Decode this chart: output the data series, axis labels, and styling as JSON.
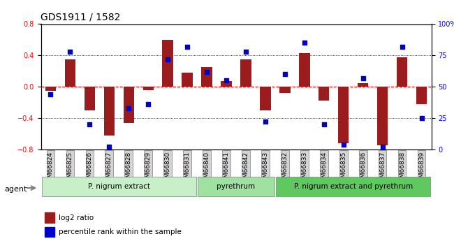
{
  "title": "GDS1911 / 1582",
  "samples": [
    "GSM66824",
    "GSM66825",
    "GSM66826",
    "GSM66827",
    "GSM66828",
    "GSM66829",
    "GSM66830",
    "GSM66831",
    "GSM66840",
    "GSM66841",
    "GSM66842",
    "GSM66843",
    "GSM66832",
    "GSM66833",
    "GSM66834",
    "GSM66835",
    "GSM66836",
    "GSM66837",
    "GSM66838",
    "GSM66839"
  ],
  "log2_ratio": [
    -0.05,
    0.35,
    -0.3,
    -0.62,
    -0.46,
    -0.04,
    0.6,
    0.18,
    0.25,
    0.07,
    0.35,
    -0.3,
    -0.08,
    0.43,
    -0.18,
    -0.72,
    0.05,
    -0.75,
    0.38,
    -0.22
  ],
  "pct_rank": [
    44,
    78,
    20,
    2,
    33,
    36,
    72,
    82,
    62,
    55,
    78,
    22,
    60,
    85,
    20,
    4,
    57,
    2,
    82,
    25
  ],
  "groups": [
    {
      "label": "P. nigrum extract",
      "start": 0,
      "end": 8,
      "color": "#c8f0c8"
    },
    {
      "label": "pyrethrum",
      "start": 8,
      "end": 12,
      "color": "#a0e0a0"
    },
    {
      "label": "P. nigrum extract and pyrethrum",
      "start": 12,
      "end": 20,
      "color": "#60c860"
    }
  ],
  "bar_color": "#9b1c1c",
  "dot_color": "#0000cc",
  "ylim_left": [
    -0.8,
    0.8
  ],
  "ylim_right": [
    0,
    100
  ],
  "yticks_left": [
    -0.8,
    -0.4,
    0.0,
    0.4,
    0.8
  ],
  "yticks_right": [
    0,
    25,
    50,
    75,
    100
  ],
  "hline_dotted": [
    -0.4,
    0.0,
    0.4
  ],
  "hline_red_dashed": 0.0,
  "legend_items": [
    {
      "label": "log2 ratio",
      "color": "#9b1c1c"
    },
    {
      "label": "percentile rank within the sample",
      "color": "#0000cc"
    }
  ],
  "agent_label": "agent"
}
